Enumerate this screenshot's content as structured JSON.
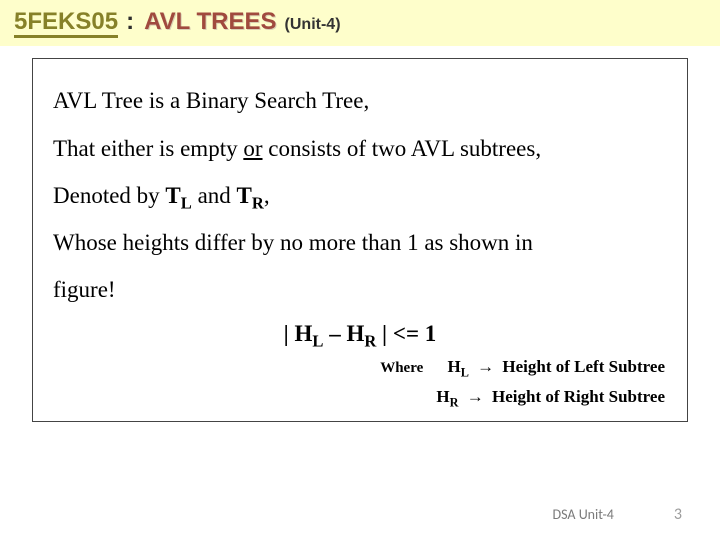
{
  "header": {
    "course_code": "5FEKS05",
    "separator": ":",
    "topic": "AVL TREES",
    "unit": "(Unit-4)"
  },
  "body": {
    "line1_a": "AVL Tree is a Binary Search Tree,",
    "line2_a": "That either is empty ",
    "line2_u": "or",
    "line2_b": " consists of two AVL subtrees,",
    "line3_a": "Denoted by ",
    "line3_tl": "T",
    "line3_tlsub": "L",
    "line3_mid": " and ",
    "line3_tr": "T",
    "line3_trsub": "R",
    "line3_end": ",",
    "line4": "Whose heights differ by no more than 1 as shown in",
    "line5": "figure!",
    "formula_a": "| H",
    "formula_lsub": "L",
    "formula_mid": " – H",
    "formula_rsub": "R",
    "formula_end": " | <= 1",
    "where_label": "Where",
    "where_hl": "H",
    "where_hl_sub": "L",
    "where_hl_arrow": "→",
    "where_hl_text": "Height of Left Subtree",
    "where_hr": "H",
    "where_hr_sub": "R",
    "where_hr_arrow": "→",
    "where_hr_text": "Height of Right Subtree"
  },
  "footer": {
    "unit": "DSA Unit-4",
    "page": "3"
  }
}
